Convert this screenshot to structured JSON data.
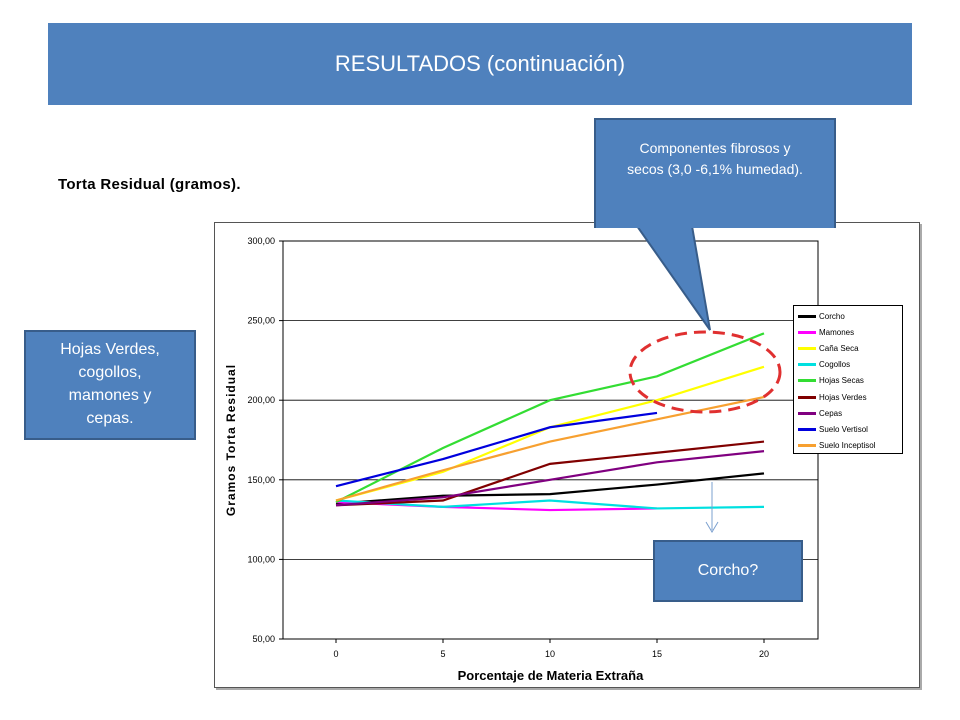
{
  "header": {
    "title": "RESULTADOS (continuación)"
  },
  "subtitle": "Torta Residual (gramos).",
  "callouts": {
    "left": [
      "Hojas Verdes,",
      "cogollos,",
      "mamones y",
      "cepas."
    ],
    "top": [
      "Componentes fibrosos y",
      "secos (3,0 -6,1% humedad)."
    ],
    "corcho": "Corcho?"
  },
  "colors": {
    "title_bg": "#4f81bd",
    "callout_bg": "#4f81bd",
    "highlight_ellipse": "#e03030",
    "arrow": "#7ba0cf"
  },
  "chart_data": {
    "type": "line",
    "xlabel": "Porcentaje de Materia Extraña",
    "ylabel": "Gramos Torta Residual",
    "x": [
      0,
      5,
      10,
      15,
      20
    ],
    "ylim": [
      50,
      300
    ],
    "yticks": [
      "50,00",
      "100,00",
      "150,00",
      "200,00",
      "250,00",
      "300,00"
    ],
    "grid": "horizontal",
    "legend_position": "right",
    "series": [
      {
        "name": "Corcho",
        "color": "#000000",
        "values": [
          135,
          140,
          141,
          147,
          154
        ]
      },
      {
        "name": "Mamones",
        "color": "#ff00ff",
        "values": [
          136,
          133,
          131,
          132,
          null
        ]
      },
      {
        "name": "Caña Seca",
        "color": "#ffff00",
        "values": [
          137,
          155,
          183,
          200,
          221
        ]
      },
      {
        "name": "Cogollos",
        "color": "#00e0e0",
        "values": [
          137,
          133,
          137,
          132,
          133
        ]
      },
      {
        "name": "Hojas Secas",
        "color": "#33dd33",
        "values": [
          136,
          170,
          200,
          215,
          242
        ]
      },
      {
        "name": "Hojas Verdes",
        "color": "#800000",
        "values": [
          134,
          137,
          160,
          167,
          174
        ]
      },
      {
        "name": "Cepas",
        "color": "#800080",
        "values": [
          134,
          139,
          150,
          161,
          168
        ]
      },
      {
        "name": "Suelo Vertisol",
        "color": "#0000dd",
        "values": [
          146,
          163,
          183,
          192,
          null
        ]
      },
      {
        "name": "Suelo Inceptisol",
        "color": "#f7a030",
        "values": [
          137,
          156,
          174,
          188,
          202
        ]
      }
    ]
  }
}
